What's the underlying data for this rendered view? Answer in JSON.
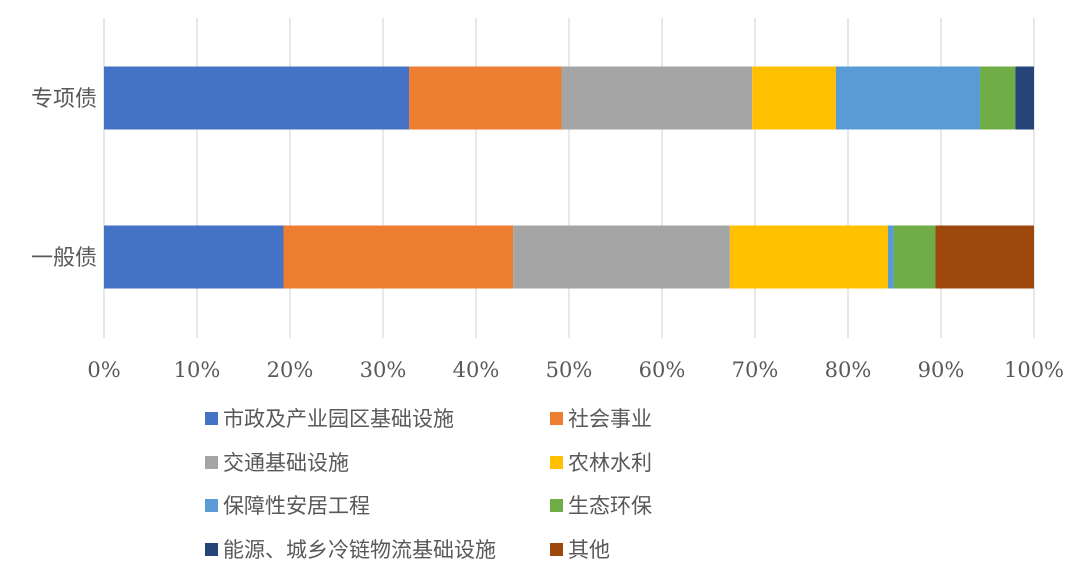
{
  "chart_data": {
    "type": "bar",
    "orientation": "horizontal",
    "stacked": "percent",
    "categories": [
      "专项债",
      "一般债"
    ],
    "series": [
      {
        "name": "市政及产业园区基础设施",
        "color": "#4472C4",
        "values": [
          32.8,
          19.3
        ]
      },
      {
        "name": "社会事业",
        "color": "#ED7D31",
        "values": [
          16.4,
          24.7
        ]
      },
      {
        "name": "交通基础设施",
        "color": "#A5A5A5",
        "values": [
          20.5,
          23.3
        ]
      },
      {
        "name": "农林水利",
        "color": "#FFC000",
        "values": [
          9.0,
          17.0
        ]
      },
      {
        "name": "保障性安居工程",
        "color": "#5B9BD5",
        "values": [
          15.5,
          0.6
        ]
      },
      {
        "name": "生态环保",
        "color": "#70AD47",
        "values": [
          3.8,
          4.5
        ]
      },
      {
        "name": "能源、城乡冷链物流基础设施",
        "color": "#264478",
        "values": [
          2.0,
          0
        ]
      },
      {
        "name": "其他",
        "color": "#9E480E",
        "values": [
          0,
          10.6
        ]
      }
    ],
    "x_ticks": [
      "0%",
      "10%",
      "20%",
      "30%",
      "40%",
      "50%",
      "60%",
      "70%",
      "80%",
      "90%",
      "100%"
    ],
    "xlim": [
      0,
      100
    ],
    "grid": true,
    "legend_position": "bottom"
  }
}
